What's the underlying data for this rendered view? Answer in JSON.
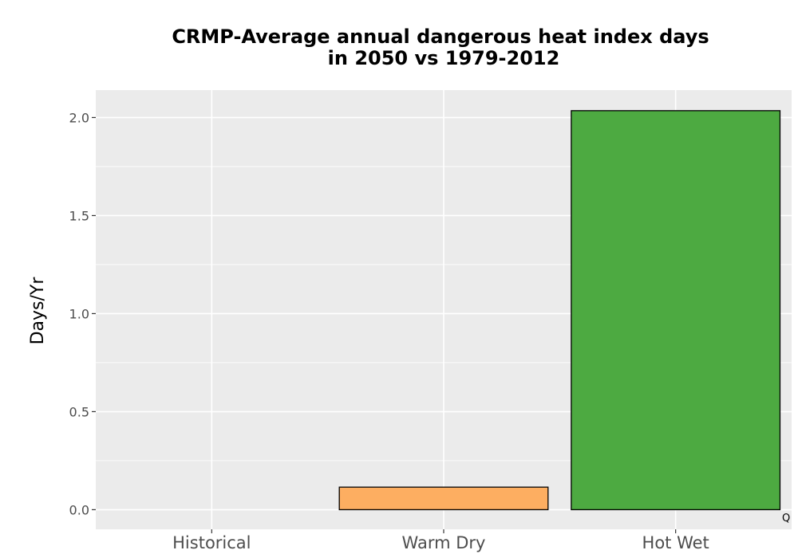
{
  "chart_data": {
    "type": "bar",
    "title_lines": [
      "CRMP-Average annual dangerous heat index days",
      "in 2050 vs 1979-2012"
    ],
    "ylabel": "Days/Yr",
    "xlabel": "",
    "categories": [
      "Historical",
      "Warm Dry",
      "Hot Wet"
    ],
    "values": [
      0.0,
      0.115,
      2.035
    ],
    "bar_colors": [
      "#000000",
      "#FDAE61",
      "#4DAA41"
    ],
    "ylim": [
      -0.1,
      2.14
    ],
    "yticks": [
      0.0,
      0.5,
      1.0,
      1.5,
      2.0
    ],
    "ytick_labels": [
      "0.0",
      "0.5",
      "1.0",
      "1.5",
      "2.0"
    ],
    "grid": true,
    "panel_color": "#EBEBEB",
    "corner_mark": "Q"
  }
}
